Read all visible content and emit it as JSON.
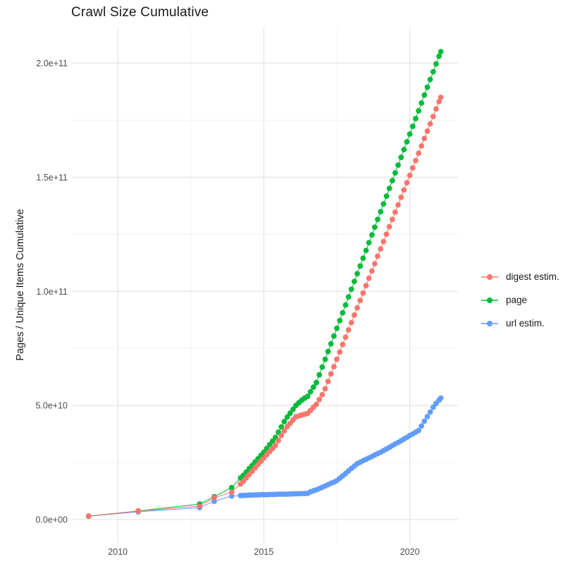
{
  "title": "Crawl Size Cumulative",
  "chart_data": {
    "type": "scatter",
    "title": "Crawl Size Cumulative",
    "xlabel": "",
    "ylabel": "Pages / Unique Items Cumulative",
    "grid": true,
    "legend_position": "right",
    "value_unit": "billions (1e9)",
    "x_domain": [
      2008.45,
      2021.65
    ],
    "y_domain_billions": [
      -10.2,
      215.3
    ],
    "x_ticks": [
      {
        "label": "2010",
        "value": 2010
      },
      {
        "label": "2015",
        "value": 2015
      },
      {
        "label": "2020",
        "value": 2020
      }
    ],
    "x_minor": [
      2012.5,
      2017.5
    ],
    "y_ticks": [
      {
        "label": "0.0e+00",
        "value": 0
      },
      {
        "label": "5.0e+10",
        "value": 50
      },
      {
        "label": "1.0e+11",
        "value": 100
      },
      {
        "label": "1.5e+11",
        "value": 150
      },
      {
        "label": "2.0e+11",
        "value": 200
      }
    ],
    "y_minor": [
      25,
      75,
      125,
      175
    ],
    "x": [
      2009.0,
      2010.7,
      2012.8,
      2013.3,
      2013.9,
      2014.2,
      2014.3,
      2014.4,
      2014.5,
      2014.6,
      2014.7,
      2014.8,
      2014.9,
      2015.0,
      2015.1,
      2015.2,
      2015.3,
      2015.4,
      2015.5,
      2015.6,
      2015.7,
      2015.8,
      2015.9,
      2016.0,
      2016.1,
      2016.2,
      2016.3,
      2016.4,
      2016.5,
      2016.6,
      2016.7,
      2016.8,
      2016.9,
      2017.0,
      2017.1,
      2017.2,
      2017.3,
      2017.4,
      2017.5,
      2017.6,
      2017.7,
      2017.8,
      2017.9,
      2018.0,
      2018.1,
      2018.2,
      2018.3,
      2018.4,
      2018.5,
      2018.6,
      2018.7,
      2018.8,
      2018.9,
      2019.0,
      2019.1,
      2019.2,
      2019.3,
      2019.4,
      2019.5,
      2019.6,
      2019.7,
      2019.8,
      2019.9,
      2020.0,
      2020.1,
      2020.2,
      2020.3,
      2020.4,
      2020.5,
      2020.6,
      2020.7,
      2020.8,
      2020.9,
      2021.0,
      2021.06
    ],
    "series": [
      {
        "name": "digest estim.",
        "color": "#F8766D",
        "values": [
          1.5,
          3.7,
          5.9,
          9.5,
          12.0,
          15.6,
          16.8,
          18.3,
          19.7,
          21.2,
          22.6,
          24.1,
          25.5,
          27.0,
          28.4,
          29.8,
          31.1,
          32.5,
          34.6,
          36.8,
          38.9,
          40.7,
          42.1,
          43.6,
          45.0,
          45.4,
          45.8,
          46.1,
          46.5,
          47.8,
          49.2,
          50.5,
          52.6,
          54.7,
          57.3,
          60.5,
          63.8,
          67.0,
          70.2,
          73.4,
          76.7,
          79.9,
          83.1,
          86.3,
          89.6,
          92.8,
          96.0,
          99.2,
          102.5,
          105.7,
          108.9,
          112.1,
          115.4,
          118.6,
          121.8,
          125.0,
          128.3,
          131.5,
          134.7,
          137.9,
          141.2,
          144.4,
          147.6,
          150.8,
          154.1,
          157.3,
          160.5,
          163.7,
          167.0,
          170.2,
          173.4,
          176.6,
          179.9,
          183.1,
          185.0
        ]
      },
      {
        "name": "page",
        "color": "#00BA38",
        "values": [
          1.5,
          3.8,
          6.8,
          10.0,
          14.0,
          18.2,
          19.4,
          20.8,
          22.3,
          23.7,
          25.2,
          26.6,
          28.1,
          29.5,
          31.1,
          32.8,
          34.4,
          36.0,
          38.3,
          40.6,
          42.9,
          44.9,
          46.6,
          48.3,
          50.0,
          51.2,
          52.3,
          53.2,
          54.0,
          56.0,
          58.0,
          60.0,
          63.4,
          66.8,
          70.2,
          73.6,
          77.0,
          80.4,
          83.8,
          87.2,
          90.6,
          94.0,
          97.5,
          100.9,
          104.3,
          107.7,
          111.1,
          114.5,
          117.9,
          121.3,
          124.7,
          128.1,
          131.5,
          134.9,
          138.3,
          141.7,
          145.1,
          148.5,
          151.9,
          155.3,
          158.7,
          162.1,
          165.5,
          168.9,
          172.3,
          175.7,
          179.1,
          182.5,
          186.0,
          189.4,
          192.8,
          196.2,
          199.6,
          203.0,
          205.0
        ]
      },
      {
        "name": "url estim.",
        "color": "#619CFF",
        "values": [
          1.4,
          3.4,
          5.2,
          8.0,
          10.3,
          10.5,
          10.6,
          10.6,
          10.7,
          10.7,
          10.8,
          10.8,
          10.9,
          10.9,
          10.9,
          11.0,
          11.0,
          11.0,
          11.1,
          11.1,
          11.1,
          11.1,
          11.2,
          11.2,
          11.3,
          11.3,
          11.4,
          11.4,
          11.5,
          12.2,
          12.6,
          13.0,
          13.6,
          14.1,
          14.7,
          15.3,
          15.9,
          16.4,
          17.0,
          18.1,
          19.1,
          20.2,
          21.3,
          22.4,
          23.4,
          24.5,
          25.1,
          25.8,
          26.4,
          27.0,
          27.6,
          28.3,
          28.9,
          29.5,
          30.2,
          30.9,
          31.6,
          32.4,
          33.1,
          33.8,
          34.5,
          35.3,
          36.0,
          36.8,
          37.5,
          38.3,
          39.0,
          41.0,
          43.1,
          45.1,
          47.1,
          49.2,
          50.9,
          52.3,
          53.2
        ]
      }
    ],
    "draw_order": [
      2,
      1,
      0
    ]
  },
  "colors": {
    "background": "#FFFFFF",
    "grid_major": "#E4E4E4",
    "grid_minor": "#F0F0F0",
    "axis_text": "#4D4D4D",
    "text": "#1A1A1A"
  }
}
